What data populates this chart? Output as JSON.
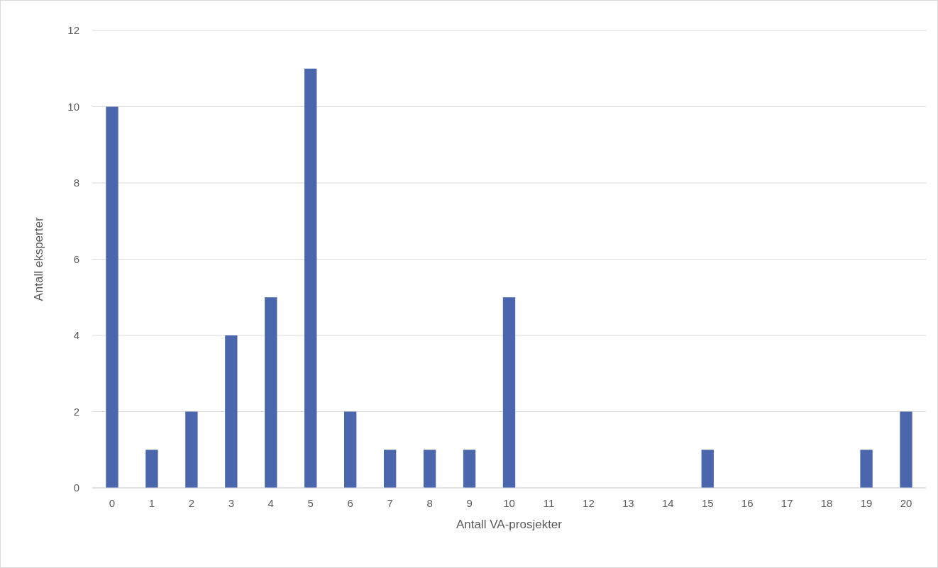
{
  "chart_data": {
    "type": "bar",
    "xlabel": "Antall VA-prosjekter",
    "ylabel": "Antall eksperter",
    "categories": [
      "0",
      "1",
      "2",
      "3",
      "4",
      "5",
      "6",
      "7",
      "8",
      "9",
      "10",
      "11",
      "12",
      "13",
      "14",
      "15",
      "16",
      "17",
      "18",
      "19",
      "20"
    ],
    "values": [
      10,
      1,
      2,
      4,
      5,
      11,
      2,
      1,
      1,
      1,
      5,
      0,
      0,
      0,
      0,
      1,
      0,
      0,
      0,
      1,
      2
    ],
    "color": "#4a66ac",
    "ylim": [
      0,
      12
    ],
    "yticks": [
      0,
      2,
      4,
      6,
      8,
      10,
      12
    ],
    "grid": "y"
  }
}
